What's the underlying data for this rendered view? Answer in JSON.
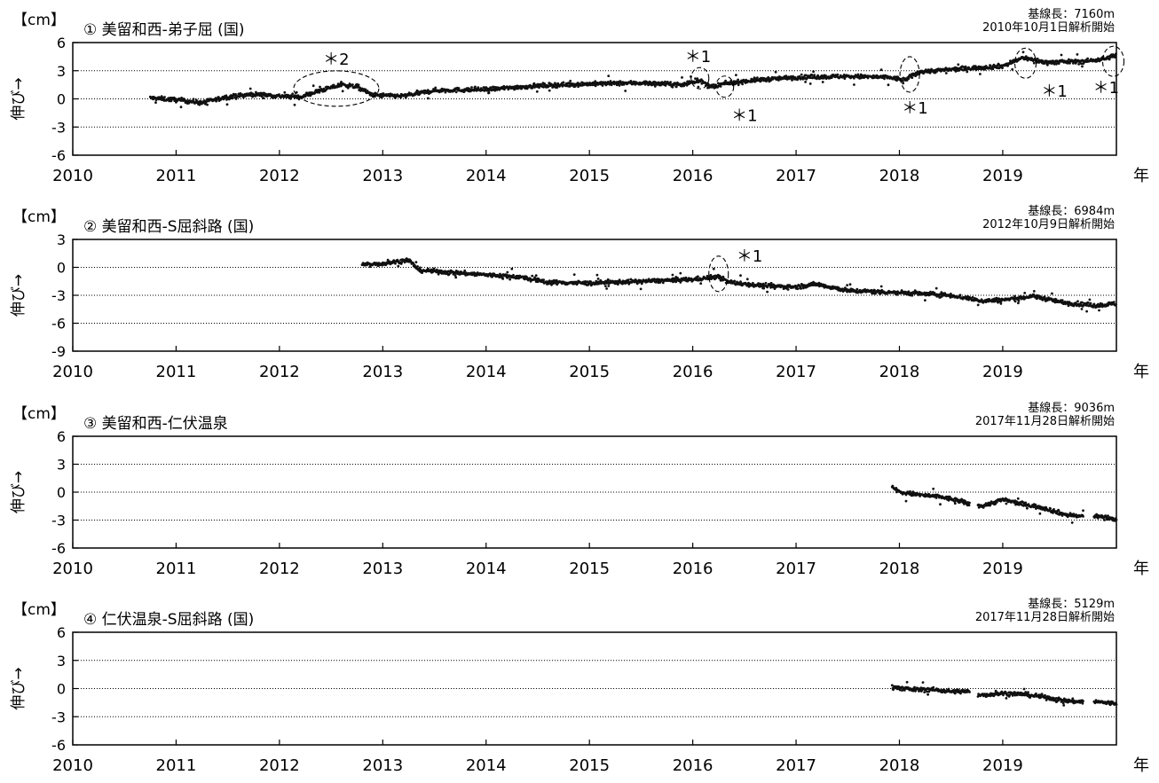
{
  "chart_data": [
    {
      "type": "scatter",
      "title": "① 美留和西-弟子屈 (国)",
      "unit": "【cm】",
      "ylabel": "伸び→",
      "xlabel_suffix": "年",
      "baseline_label": "基線長：7160m",
      "start_label": "2010年10月1日解析開始",
      "xlim": [
        2010,
        2020.1
      ],
      "ylim": [
        -6,
        6
      ],
      "yticks": [
        "6",
        "3",
        "0",
        "-3",
        "-6"
      ],
      "xticks": [
        "2010",
        "2011",
        "2012",
        "2013",
        "2014",
        "2015",
        "2016",
        "2017",
        "2018",
        "2019"
      ],
      "points": [
        [
          2010.75,
          0.1
        ],
        [
          2011.0,
          -0.1
        ],
        [
          2011.25,
          -0.4
        ],
        [
          2011.5,
          0.2
        ],
        [
          2011.75,
          0.5
        ],
        [
          2012.0,
          0.3
        ],
        [
          2012.2,
          0.2
        ],
        [
          2012.4,
          0.9
        ],
        [
          2012.6,
          1.5
        ],
        [
          2012.75,
          1.3
        ],
        [
          2012.9,
          0.4
        ],
        [
          2013.2,
          0.3
        ],
        [
          2013.5,
          0.9
        ],
        [
          2014.0,
          1.0
        ],
        [
          2014.5,
          1.4
        ],
        [
          2015.0,
          1.6
        ],
        [
          2015.5,
          1.7
        ],
        [
          2015.9,
          1.5
        ],
        [
          2016.05,
          2.0
        ],
        [
          2016.2,
          1.2
        ],
        [
          2016.3,
          1.6
        ],
        [
          2016.6,
          2.0
        ],
        [
          2017.0,
          2.3
        ],
        [
          2017.5,
          2.4
        ],
        [
          2017.9,
          2.3
        ],
        [
          2018.05,
          2.0
        ],
        [
          2018.2,
          2.9
        ],
        [
          2018.6,
          3.2
        ],
        [
          2019.0,
          3.5
        ],
        [
          2019.2,
          4.4
        ],
        [
          2019.4,
          3.9
        ],
        [
          2019.8,
          4.0
        ],
        [
          2020.0,
          4.3
        ],
        [
          2020.1,
          4.7
        ]
      ],
      "annotations": [
        {
          "text": "＊2",
          "x": 2012.55,
          "y": 4.2
        },
        {
          "text": "＊1",
          "x": 2016.05,
          "y": 4.5
        },
        {
          "text": "＊1",
          "x": 2016.5,
          "y": -1.8
        },
        {
          "text": "＊1",
          "x": 2018.15,
          "y": -1.0
        },
        {
          "text": "＊1",
          "x": 2019.5,
          "y": 0.8
        },
        {
          "text": "＊1",
          "x": 2020.0,
          "y": 1.2
        }
      ]
    },
    {
      "type": "scatter",
      "title": "② 美留和西-S屈斜路 (国)",
      "unit": "【cm】",
      "ylabel": "伸び→",
      "xlabel_suffix": "年",
      "baseline_label": "基線長：6984m",
      "start_label": "2012年10月9日解析開始",
      "xlim": [
        2010,
        2020.1
      ],
      "ylim": [
        -9,
        3
      ],
      "yticks": [
        "3",
        "0",
        "-3",
        "-6",
        "-9"
      ],
      "xticks": [
        "2010",
        "2011",
        "2012",
        "2013",
        "2014",
        "2015",
        "2016",
        "2017",
        "2018",
        "2019"
      ],
      "points": [
        [
          2012.8,
          0.3
        ],
        [
          2013.0,
          0.4
        ],
        [
          2013.25,
          0.8
        ],
        [
          2013.35,
          -0.3
        ],
        [
          2013.6,
          -0.5
        ],
        [
          2014.0,
          -0.8
        ],
        [
          2014.3,
          -1.0
        ],
        [
          2014.6,
          -1.6
        ],
        [
          2015.0,
          -1.7
        ],
        [
          2015.5,
          -1.5
        ],
        [
          2016.0,
          -1.3
        ],
        [
          2016.25,
          -1.0
        ],
        [
          2016.35,
          -1.6
        ],
        [
          2016.7,
          -2.0
        ],
        [
          2017.0,
          -2.1
        ],
        [
          2017.2,
          -1.8
        ],
        [
          2017.5,
          -2.5
        ],
        [
          2018.0,
          -2.7
        ],
        [
          2018.5,
          -3.0
        ],
        [
          2018.8,
          -3.6
        ],
        [
          2019.0,
          -3.5
        ],
        [
          2019.3,
          -3.1
        ],
        [
          2019.6,
          -3.8
        ],
        [
          2019.9,
          -4.1
        ],
        [
          2020.1,
          -3.9
        ]
      ],
      "annotations": [
        {
          "text": "＊1",
          "x": 2016.55,
          "y": 1.2
        }
      ]
    },
    {
      "type": "scatter",
      "title": "③ 美留和西-仁伏温泉",
      "unit": "【cm】",
      "ylabel": "伸び→",
      "xlabel_suffix": "年",
      "baseline_label": "基線長：9036m",
      "start_label": "2017年11月28日解析開始",
      "xlim": [
        2010,
        2020.1
      ],
      "ylim": [
        -6,
        6
      ],
      "yticks": [
        "6",
        "3",
        "0",
        "-3",
        "-6"
      ],
      "xticks": [
        "2010",
        "2011",
        "2012",
        "2013",
        "2014",
        "2015",
        "2016",
        "2017",
        "2018",
        "2019"
      ],
      "points": [
        [
          2017.93,
          0.6
        ],
        [
          2018.0,
          0.0
        ],
        [
          2018.2,
          -0.3
        ],
        [
          2018.4,
          -0.5
        ],
        [
          2018.6,
          -1.0
        ],
        [
          2018.65,
          -1.2
        ],
        [
          2018.8,
          -1.5
        ],
        [
          2019.0,
          -0.8
        ],
        [
          2019.2,
          -1.3
        ],
        [
          2019.4,
          -1.7
        ],
        [
          2019.6,
          -2.4
        ],
        [
          2019.75,
          -2.6
        ],
        [
          2019.85,
          -2.5
        ],
        [
          2020.0,
          -2.7
        ],
        [
          2020.1,
          -3.0
        ]
      ],
      "annotations": []
    },
    {
      "type": "scatter",
      "title": "④ 仁伏温泉-S屈斜路 (国)",
      "unit": "【cm】",
      "ylabel": "伸び→",
      "xlabel_suffix": "年",
      "baseline_label": "基線長：5129m",
      "start_label": "2017年11月28日解析開始",
      "xlim": [
        2010,
        2020.1
      ],
      "ylim": [
        -6,
        6
      ],
      "yticks": [
        "6",
        "3",
        "0",
        "-3",
        "-6"
      ],
      "xticks": [
        "2010",
        "2011",
        "2012",
        "2013",
        "2014",
        "2015",
        "2016",
        "2017",
        "2018",
        "2019"
      ],
      "points": [
        [
          2017.93,
          0.2
        ],
        [
          2018.1,
          -0.1
        ],
        [
          2018.3,
          -0.1
        ],
        [
          2018.5,
          -0.3
        ],
        [
          2018.65,
          -0.3
        ],
        [
          2018.8,
          -0.7
        ],
        [
          2019.0,
          -0.5
        ],
        [
          2019.2,
          -0.6
        ],
        [
          2019.4,
          -0.9
        ],
        [
          2019.6,
          -1.3
        ],
        [
          2019.75,
          -1.4
        ],
        [
          2019.9,
          -1.4
        ],
        [
          2020.1,
          -1.6
        ]
      ],
      "annotations": []
    }
  ]
}
